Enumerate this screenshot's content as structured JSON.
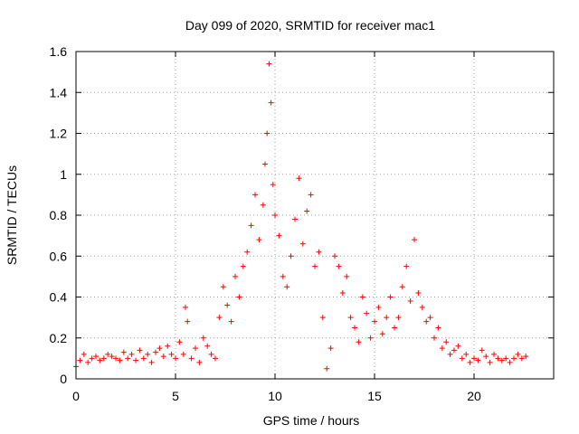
{
  "chart_data": {
    "type": "scatter",
    "title": "Day 099 of 2020, SRMTID for receiver mac1",
    "xlabel": "GPS time / hours",
    "ylabel": "SRMTID / TECUs",
    "xlim": [
      0,
      24
    ],
    "ylim": [
      0,
      1.6
    ],
    "xticks": [
      0,
      5,
      10,
      15,
      20
    ],
    "yticks": [
      0,
      0.2,
      0.4,
      0.6,
      0.8,
      1,
      1.2,
      1.4,
      1.6
    ],
    "xtick_labels": [
      "0",
      "5",
      "10",
      "15",
      "20"
    ],
    "ytick_labels": [
      "0",
      "0.2",
      "0.4",
      "0.6",
      "0.8",
      "1",
      "1.2",
      "1.4",
      "1.6"
    ],
    "grid": true,
    "marker": "+",
    "series": [
      {
        "name": "SRMTID",
        "color": "#ff0000",
        "x": [
          0.0,
          0.2,
          0.4,
          0.6,
          0.8,
          1.0,
          1.2,
          1.4,
          1.6,
          1.8,
          2.0,
          2.2,
          2.4,
          2.6,
          2.8,
          3.0,
          3.2,
          3.4,
          3.6,
          3.8,
          4.0,
          4.2,
          4.4,
          4.6,
          4.8,
          5.0,
          5.2,
          5.4,
          5.5,
          5.6,
          5.8,
          6.0,
          6.2,
          6.4,
          6.6,
          6.8,
          7.0,
          7.2,
          7.4,
          7.6,
          7.8,
          8.0,
          8.2,
          8.4,
          8.6,
          8.8,
          9.0,
          9.2,
          9.4,
          9.5,
          9.6,
          9.7,
          9.8,
          9.9,
          10.0,
          10.2,
          10.4,
          10.6,
          10.8,
          11.0,
          11.2,
          11.4,
          11.6,
          11.8,
          12.0,
          12.2,
          12.4,
          12.6,
          12.8,
          13.0,
          13.2,
          13.4,
          13.6,
          13.8,
          14.0,
          14.2,
          14.4,
          14.6,
          14.8,
          15.0,
          15.2,
          15.4,
          15.6,
          15.8,
          16.0,
          16.2,
          16.4,
          16.6,
          16.8,
          17.0,
          17.2,
          17.4,
          17.6,
          17.8,
          18.0,
          18.2,
          18.4,
          18.6,
          18.8,
          19.0,
          19.2,
          19.4,
          19.6,
          19.8,
          20.0,
          20.2,
          20.4,
          20.6,
          20.8,
          21.0,
          21.2,
          21.4,
          21.6,
          21.8,
          22.0,
          22.2,
          22.4,
          22.6
        ],
        "y": [
          0.06,
          0.09,
          0.12,
          0.08,
          0.1,
          0.11,
          0.09,
          0.1,
          0.12,
          0.11,
          0.1,
          0.09,
          0.13,
          0.1,
          0.12,
          0.09,
          0.14,
          0.1,
          0.12,
          0.08,
          0.13,
          0.15,
          0.11,
          0.16,
          0.12,
          0.1,
          0.18,
          0.12,
          0.35,
          0.28,
          0.1,
          0.15,
          0.08,
          0.2,
          0.16,
          0.12,
          0.1,
          0.3,
          0.45,
          0.36,
          0.28,
          0.5,
          0.4,
          0.55,
          0.62,
          0.75,
          0.9,
          0.68,
          0.85,
          1.05,
          1.2,
          1.54,
          1.35,
          0.95,
          0.8,
          0.7,
          0.5,
          0.45,
          0.6,
          0.78,
          0.98,
          0.66,
          0.82,
          0.9,
          0.55,
          0.62,
          0.3,
          0.05,
          0.15,
          0.6,
          0.55,
          0.42,
          0.5,
          0.3,
          0.25,
          0.18,
          0.4,
          0.32,
          0.2,
          0.28,
          0.35,
          0.22,
          0.3,
          0.4,
          0.25,
          0.3,
          0.45,
          0.55,
          0.38,
          0.68,
          0.42,
          0.35,
          0.28,
          0.3,
          0.2,
          0.25,
          0.15,
          0.18,
          0.12,
          0.14,
          0.16,
          0.1,
          0.12,
          0.08,
          0.1,
          0.09,
          0.14,
          0.11,
          0.08,
          0.12,
          0.1,
          0.09,
          0.1,
          0.08,
          0.1,
          0.12,
          0.1,
          0.11
        ]
      }
    ]
  }
}
